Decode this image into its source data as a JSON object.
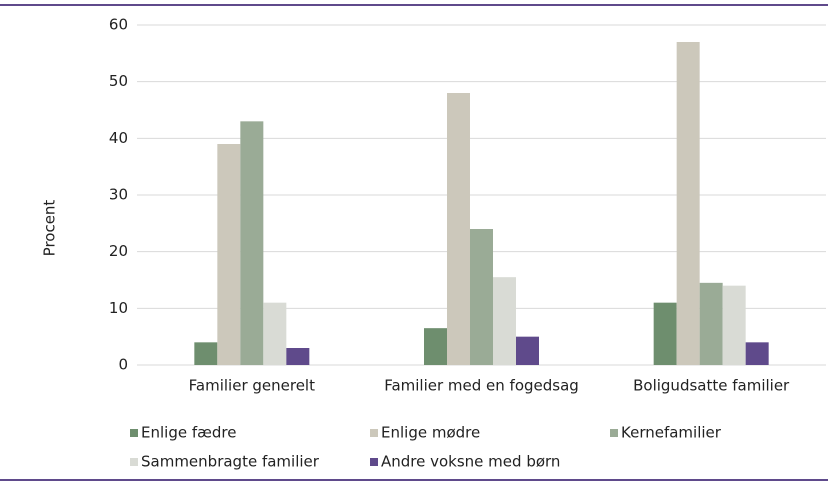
{
  "chart_data": {
    "type": "bar",
    "ylabel": "Procent",
    "categories": [
      "Familier generelt",
      "Familier med en fogedsag",
      "Boligudsatte familier"
    ],
    "series": [
      {
        "name": "Enlige fædre",
        "color": "#6e8e6e",
        "values": [
          4,
          6.5,
          11
        ]
      },
      {
        "name": "Enlige mødre",
        "color": "#ccc8bb",
        "values": [
          39,
          48,
          57
        ]
      },
      {
        "name": "Kernefamilier",
        "color": "#9aab96",
        "values": [
          43,
          24,
          14.5
        ]
      },
      {
        "name": "Sammenbragte familier",
        "color": "#d9dbd5",
        "values": [
          11,
          15.5,
          14
        ]
      },
      {
        "name": "Andre voksne med børn",
        "color": "#5f4a8b",
        "values": [
          3,
          5,
          4
        ]
      }
    ],
    "ylim": [
      0,
      60
    ],
    "yticks": [
      0,
      10,
      20,
      30,
      40,
      50,
      60
    ],
    "grid": true
  }
}
